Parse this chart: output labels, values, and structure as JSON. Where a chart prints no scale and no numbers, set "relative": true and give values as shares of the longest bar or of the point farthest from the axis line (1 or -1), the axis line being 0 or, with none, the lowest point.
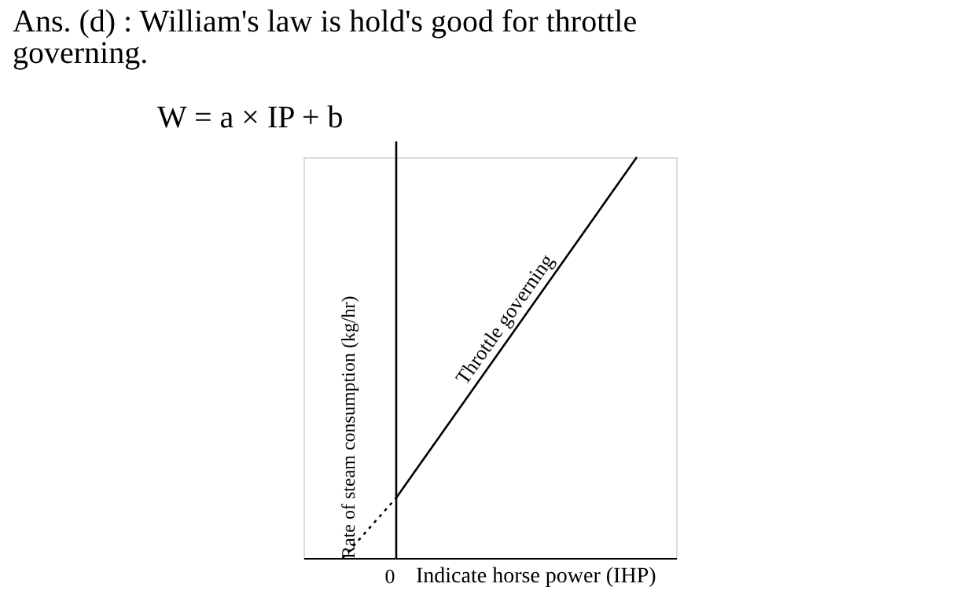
{
  "chart_data": {
    "type": "line",
    "title": [
      "Ans. (d) : William's law is hold's good for throttle",
      "governing."
    ],
    "annotations": [
      "W = a × IP + b",
      "0"
    ],
    "relative": true,
    "xlabel": "Indicate horse power (IHP)",
    "ylabel": "Rate of steam consumption (kg/hr)",
    "grid": false,
    "legend": false,
    "marker": "none",
    "categories": [
      null,
      null,
      null,
      null,
      null,
      null,
      null,
      null,
      null,
      null,
      null,
      null
    ],
    "series": [
      {
        "name": "Throttle governing",
        "color": "#000000",
        "values": [
          null,
          null,
          0.15,
          null,
          null,
          null,
          null,
          null,
          null,
          null,
          null,
          1
        ],
        "line_style": "solid"
      },
      {
        "color": "#000000",
        "values": [
          0,
          null,
          0.15,
          null,
          null,
          null,
          null,
          null,
          null,
          null,
          null,
          null
        ],
        "line_style": "dotted"
      }
    ]
  }
}
